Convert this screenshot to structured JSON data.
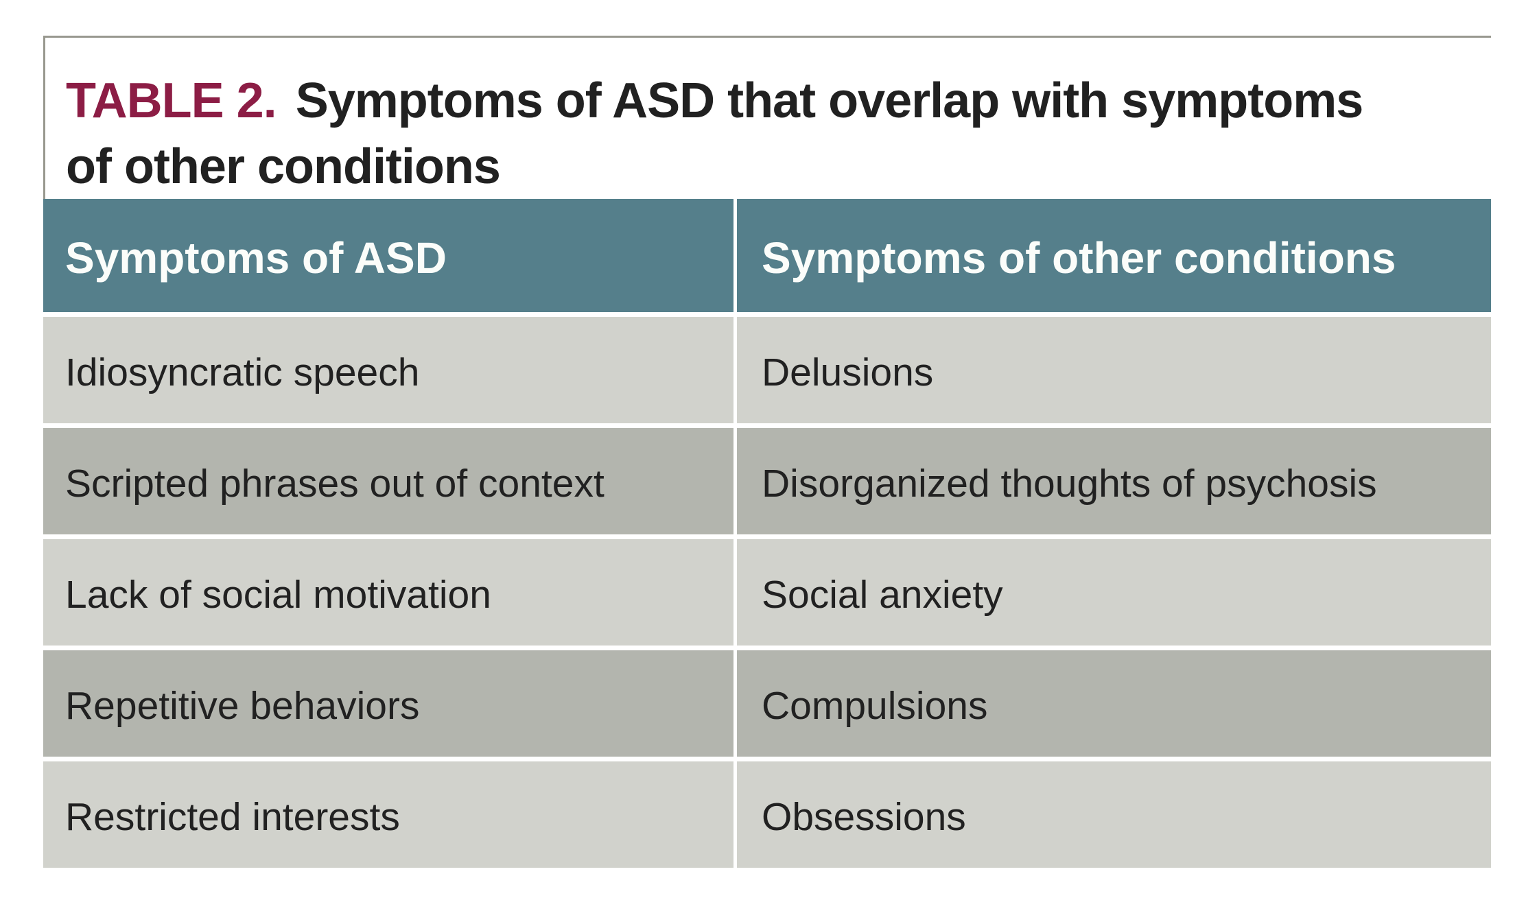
{
  "table_title": {
    "label": "TABLE 2.",
    "line1": "Symptoms of ASD that overlap with symptoms",
    "line2": "of other conditions"
  },
  "table": {
    "columns": [
      {
        "header": "Symptoms of ASD"
      },
      {
        "header": "Symptoms of other conditions"
      }
    ],
    "rows": [
      {
        "asd": "Idiosyncratic speech",
        "other": "Delusions"
      },
      {
        "asd": "Scripted phrases out of context",
        "other": "Disorganized thoughts of psychosis"
      },
      {
        "asd": "Lack of social motivation",
        "other": "Social anxiety"
      },
      {
        "asd": "Repetitive behaviors",
        "other": "Compulsions"
      },
      {
        "asd": "Restricted interests",
        "other": "Obsessions"
      }
    ]
  },
  "colors": {
    "header_bg": "#557f8b",
    "row_light": "#d1d2cc",
    "row_dark": "#b3b5ae",
    "title_accent": "#8c1d45",
    "text": "#212121",
    "header_text": "#fbfdfa",
    "border": "#98988f",
    "page_bg": "#ffffff"
  }
}
